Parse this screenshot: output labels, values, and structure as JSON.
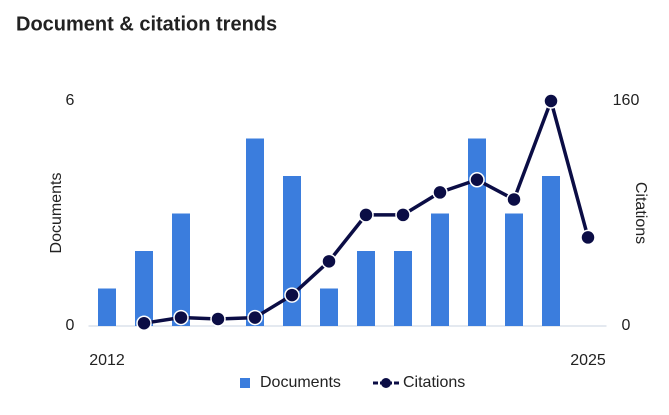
{
  "chart_data": {
    "type": "bar-line",
    "title": "Document & citation trends",
    "categories": [
      "2012",
      null,
      null,
      null,
      null,
      null,
      null,
      null,
      null,
      null,
      null,
      null,
      null,
      "2025"
    ],
    "y_label": "Documents",
    "y2_label": "Citations",
    "ylim": [
      0,
      6
    ],
    "yticks": [
      0,
      6
    ],
    "y2lim": [
      0,
      160
    ],
    "y2ticks": [
      0,
      160
    ],
    "series": [
      {
        "name": "Documents",
        "type": "bar",
        "color": "#3b7ddd",
        "values": [
          1,
          2,
          3,
          0,
          5,
          4,
          1,
          2,
          2,
          3,
          5,
          3,
          4,
          0
        ]
      },
      {
        "name": "Citations",
        "type": "line",
        "axis": "y2",
        "color": "#0b0d45",
        "values": [
          null,
          2,
          6,
          5,
          6,
          22,
          46,
          79,
          79,
          95,
          104,
          90,
          160,
          63
        ]
      }
    ]
  }
}
